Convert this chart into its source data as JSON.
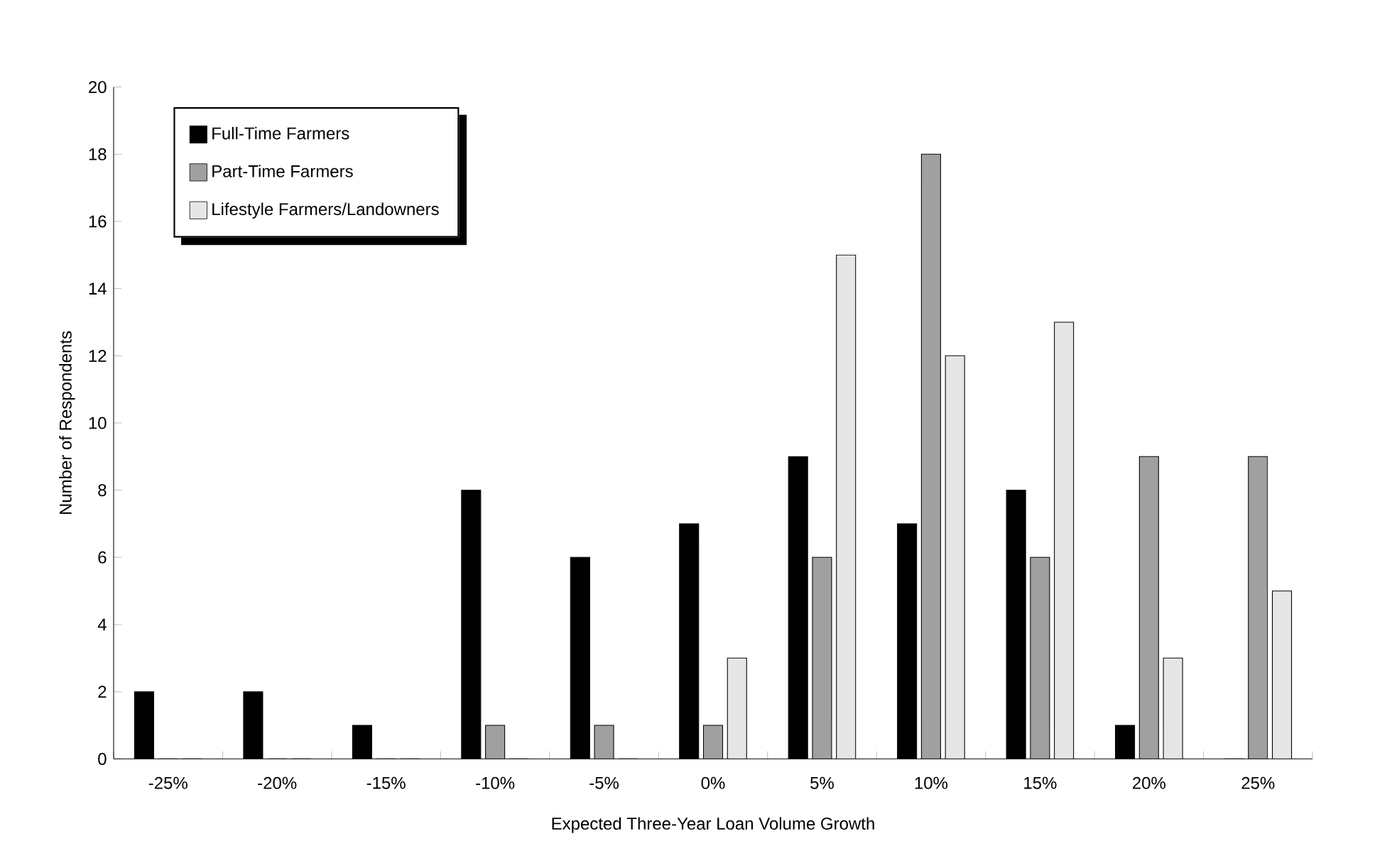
{
  "chart_data": {
    "type": "bar",
    "xlabel": "Expected Three-Year Loan Volume Growth",
    "ylabel": "Number of Respondents",
    "categories": [
      "-25%",
      "-20%",
      "-15%",
      "-10%",
      "-5%",
      "0%",
      "5%",
      "10%",
      "15%",
      "20%",
      "25%"
    ],
    "series": [
      {
        "name": "Full-Time Farmers",
        "color": "#000000",
        "values": [
          2,
          2,
          1,
          8,
          6,
          7,
          9,
          7,
          8,
          1,
          0
        ]
      },
      {
        "name": "Part-Time Farmers",
        "color": "#a0a0a0",
        "values": [
          0,
          0,
          0,
          1,
          1,
          1,
          6,
          18,
          6,
          9,
          9
        ]
      },
      {
        "name": "Lifestyle Farmers/Landowners",
        "color": "#e6e6e6",
        "values": [
          0,
          0,
          0,
          0,
          0,
          3,
          15,
          12,
          13,
          3,
          5
        ]
      }
    ],
    "ylim": [
      0,
      20
    ],
    "yticks": [
      0,
      2,
      4,
      6,
      8,
      10,
      12,
      14,
      16,
      18,
      20
    ],
    "legend": "top left",
    "grid": false
  }
}
